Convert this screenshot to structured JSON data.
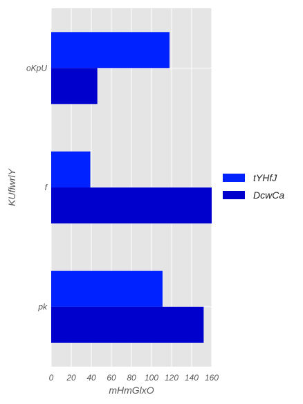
{
  "chart_data": {
    "type": "bar",
    "orientation": "horizontal",
    "categories": [
      "oKpU",
      "f",
      "pk"
    ],
    "series": [
      {
        "name": "tYHfJ",
        "color": "#0022ff",
        "values": [
          118,
          39,
          111
        ]
      },
      {
        "name": "DcwCa",
        "color": "#0000cc",
        "values": [
          46,
          160,
          152
        ]
      }
    ],
    "xlabel": "mHmGlxO",
    "ylabel": "KUflwrlY",
    "xlim": [
      0,
      160
    ],
    "xticks": [
      "0",
      "20",
      "40",
      "60",
      "80",
      "100",
      "120",
      "140",
      "160"
    ],
    "grid": true,
    "legend_position": "right"
  }
}
